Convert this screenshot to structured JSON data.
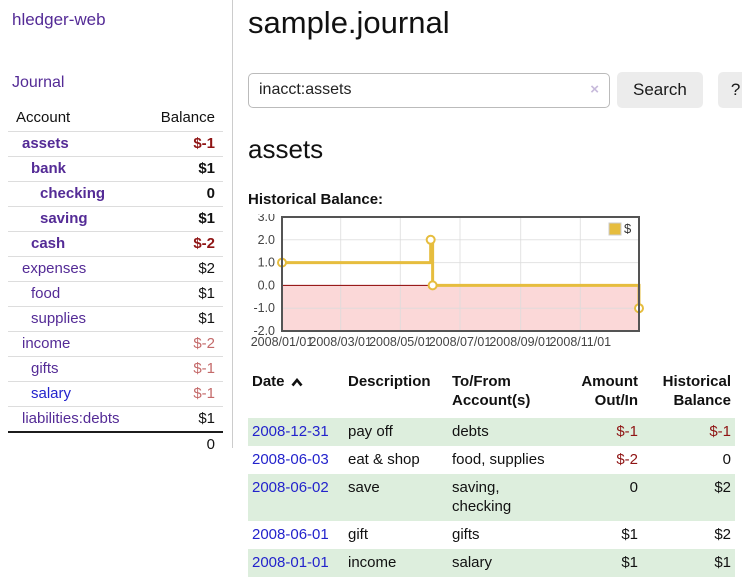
{
  "colors": {
    "link_purple": "#542b96",
    "link_blue": "#2323cc",
    "negative_strong": "#8f1414",
    "negative_soft": "#c46a6a",
    "row_green": "#ddeedd",
    "chart_line": "#e6bd3e"
  },
  "app": {
    "title": "hledger-web"
  },
  "sidebar": {
    "journal_link": "Journal",
    "accounts_table": {
      "account_header": "Account",
      "balance_header": "Balance",
      "rows": [
        {
          "name": "assets",
          "balance": "$-1",
          "depth": 0,
          "bold": true,
          "neg": "strong"
        },
        {
          "name": "bank",
          "balance": "$1",
          "depth": 1,
          "bold": true,
          "neg": "none"
        },
        {
          "name": "checking",
          "balance": "0",
          "depth": 2,
          "bold": true,
          "neg": "none"
        },
        {
          "name": "saving",
          "balance": "$1",
          "depth": 2,
          "bold": true,
          "neg": "none"
        },
        {
          "name": "cash",
          "balance": "$-2",
          "depth": 1,
          "bold": true,
          "neg": "strong"
        },
        {
          "name": "expenses",
          "balance": "$2",
          "depth": 0,
          "bold": false,
          "neg": "none"
        },
        {
          "name": "food",
          "balance": "$1",
          "depth": 1,
          "bold": false,
          "neg": "none"
        },
        {
          "name": "supplies",
          "balance": "$1",
          "depth": 1,
          "bold": false,
          "neg": "none"
        },
        {
          "name": "income",
          "balance": "$-2",
          "depth": 0,
          "bold": false,
          "neg": "soft"
        },
        {
          "name": "gifts",
          "balance": "$-1",
          "depth": 1,
          "bold": false,
          "neg": "soft"
        },
        {
          "name": "salary",
          "balance": "$-1",
          "depth": 1,
          "bold": false,
          "neg": "soft",
          "link_style": "unvisited"
        },
        {
          "name": "liabilities:debts",
          "balance": "$1",
          "depth": 0,
          "bold": false,
          "neg": "none"
        }
      ],
      "total": "0"
    }
  },
  "header": {
    "title": "sample.journal"
  },
  "search": {
    "value": "inacct:assets",
    "clear_icon": "×",
    "button": "Search",
    "help_button": "?"
  },
  "account_page": {
    "heading": "assets",
    "chart_label": "Historical Balance:"
  },
  "chart_data": {
    "type": "line",
    "step": true,
    "title": "Historical Balance",
    "series": [
      {
        "name": "$",
        "color": "#e6bd3e",
        "points": [
          [
            "2008-01-01",
            1
          ],
          [
            "2008-06-01",
            2
          ],
          [
            "2008-06-03",
            0
          ],
          [
            "2008-12-31",
            -1
          ]
        ]
      }
    ],
    "xlim": [
      "2008-01-01",
      "2008-12-31"
    ],
    "ylim": [
      -2,
      3
    ],
    "y_tick_labels": [
      "3.0",
      "2.0",
      "1.0",
      "0.0",
      "-1.0",
      "-2.0"
    ],
    "y_ticks": [
      3,
      2,
      1,
      0,
      -1,
      -2
    ],
    "x_ticks": [
      "2008-01-01",
      "2008-03-01",
      "2008-05-01",
      "2008-07-01",
      "2008-09-01",
      "2008-11-01"
    ],
    "x_tick_labels": [
      "2008/01/01",
      "2008/03/01",
      "2008/05/01",
      "2008/07/01",
      "2008/09/01",
      "2008/11/01"
    ],
    "grid": true,
    "legend_position": "top-right",
    "negative_region_color": "#fbd8d8",
    "zero_line_color": "#8b0000",
    "grid_color": "#dcdcdc",
    "border_color": "#545454",
    "axis_text_color": "#444"
  },
  "register_table": {
    "headers": {
      "date": "Date",
      "description": "Description",
      "accounts": "To/From Account(s)",
      "amount": "Amount Out/In",
      "balance": "Historical Balance"
    },
    "rows": [
      {
        "date": "2008-12-31",
        "description": "pay off",
        "accounts": "debts",
        "amount": "$-1",
        "balance": "$-1",
        "shade": true
      },
      {
        "date": "2008-06-03",
        "description": "eat & shop",
        "accounts": "food, supplies",
        "amount": "$-2",
        "balance": "0",
        "shade": false
      },
      {
        "date": "2008-06-02",
        "description": "save",
        "accounts": "saving, checking",
        "amount": "0",
        "balance": "$2",
        "shade": true
      },
      {
        "date": "2008-06-01",
        "description": "gift",
        "accounts": "gifts",
        "amount": "$1",
        "balance": "$2",
        "shade": false
      },
      {
        "date": "2008-01-01",
        "description": "income",
        "accounts": "salary",
        "amount": "$1",
        "balance": "$1",
        "shade": true
      }
    ]
  }
}
